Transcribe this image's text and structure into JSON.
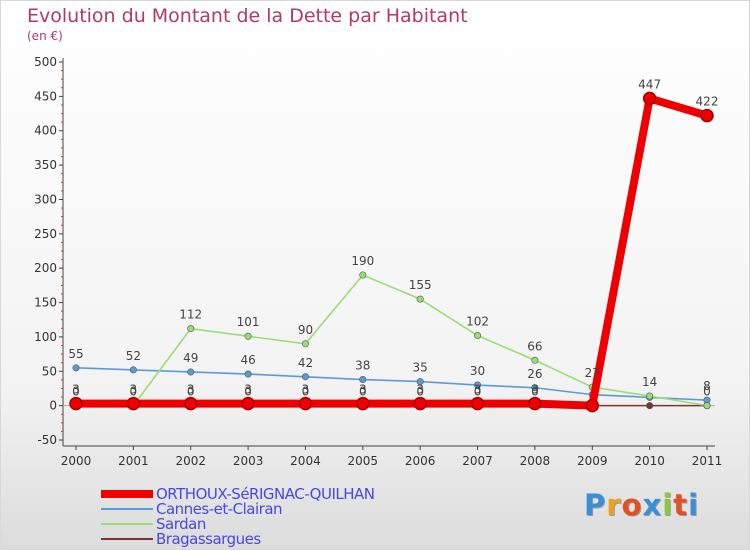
{
  "title": "Evolution du Montant de la Dette par Habitant",
  "subtitle": "(en €)",
  "brand": {
    "text": "Proxiti",
    "letter_colors": [
      "#3b8fd6",
      "#f0a020",
      "#e05020",
      "#3b8fd6",
      "#8cc63f",
      "#e05020",
      "#3b8fd6"
    ]
  },
  "chart_data": {
    "type": "line",
    "title": "Evolution du Montant de la Dette par Habitant",
    "ylabel": "(en €)",
    "xlabel": "",
    "ylim": [
      -50,
      500
    ],
    "yticks": [
      "-50",
      "0",
      "50",
      "100",
      "150",
      "200",
      "250",
      "300",
      "350",
      "400",
      "450",
      "500"
    ],
    "ytick_values": [
      -50,
      0,
      50,
      100,
      150,
      200,
      250,
      300,
      350,
      400,
      450,
      500
    ],
    "categories": [
      "2000",
      "2001",
      "2002",
      "2003",
      "2004",
      "2005",
      "2006",
      "2007",
      "2008",
      "2009",
      "2010",
      "2011"
    ],
    "series": [
      {
        "name": "Bragassargues",
        "color": "#7a3434",
        "values": [
          0,
          0,
          0,
          0,
          0,
          0,
          0,
          0,
          0,
          0,
          0,
          0
        ],
        "labels": [
          "0",
          "0",
          "0",
          "0",
          "0",
          "0",
          "0",
          "0",
          "0",
          "",
          "",
          "0"
        ]
      },
      {
        "name": "Cannes-et-Clairan",
        "color": "#5b9bd5",
        "values": [
          55,
          52,
          49,
          46,
          42,
          38,
          35,
          30,
          26,
          16,
          12,
          8
        ],
        "labels": [
          "55",
          "52",
          "49",
          "46",
          "42",
          "38",
          "35",
          "30",
          "26",
          "",
          "",
          "8"
        ]
      },
      {
        "name": "Sardan",
        "color": "#99dd77",
        "values": [
          0,
          0,
          112,
          101,
          90,
          190,
          155,
          102,
          66,
          27,
          14,
          0
        ],
        "labels": [
          "",
          "",
          "112",
          "101",
          "90",
          "190",
          "155",
          "102",
          "66",
          "27",
          "14",
          ""
        ]
      },
      {
        "name": "ORTHOUX-SéRIGNAC-QUILHAN",
        "color": "#ee0000",
        "values": [
          3,
          3,
          3,
          3,
          3,
          3,
          3,
          3,
          3,
          0,
          447,
          422
        ],
        "labels": [
          "3",
          "3",
          "3",
          "3",
          "3",
          "3",
          "3",
          "3",
          "3",
          "",
          "447",
          "422"
        ]
      }
    ],
    "legend": [
      {
        "name": "ORTHOUX-SéRIGNAC-QUILHAN",
        "color": "#ee0000",
        "weight": "thick"
      },
      {
        "name": "Cannes-et-Clairan",
        "color": "#5b9bd5",
        "weight": "thin"
      },
      {
        "name": "Sardan",
        "color": "#99dd77",
        "weight": "thin"
      },
      {
        "name": "Bragassargues",
        "color": "#7a3434",
        "weight": "thin"
      }
    ],
    "legend_position": "bottom-left",
    "grid": false
  }
}
